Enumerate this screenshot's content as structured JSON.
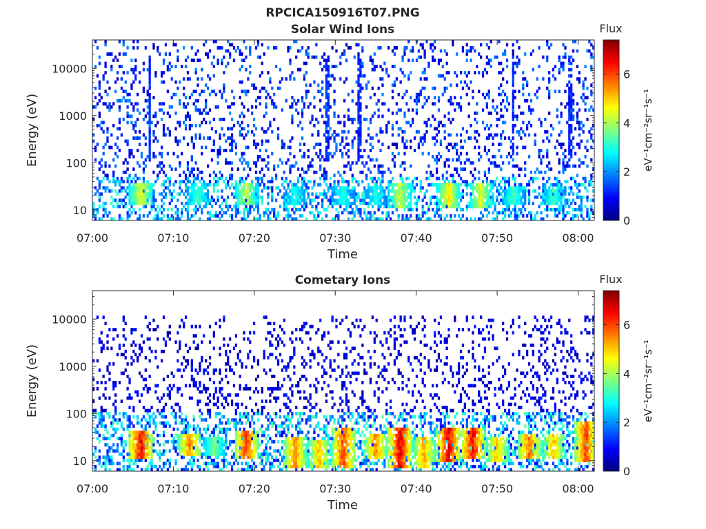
{
  "figure": {
    "title": "RPCICA150916T07.PNG"
  },
  "colorscale": {
    "name": "jet",
    "stops": [
      "#00007f",
      "#0000ff",
      "#007fff",
      "#00ffff",
      "#7fff7f",
      "#ffff00",
      "#ff7f00",
      "#ff0000",
      "#7f0000"
    ]
  },
  "chart_data": [
    {
      "type": "heatmap",
      "title": "Solar Wind Ions",
      "xlabel": "Time",
      "ylabel": "Energy (eV)",
      "x_range": [
        "07:00",
        "08:02"
      ],
      "x_ticks": [
        "07:00",
        "07:10",
        "07:20",
        "07:30",
        "07:40",
        "07:50",
        "08:00"
      ],
      "y_scale": "log",
      "y_range": [
        6,
        40000
      ],
      "y_ticks": [
        10,
        100,
        1000,
        10000
      ],
      "y_tick_labels": [
        "10",
        "100",
        "1000",
        "10000"
      ],
      "colorbar": {
        "label": "Flux",
        "unit": "eV⁻¹cm⁻²sr⁻¹s⁻¹",
        "range": [
          0,
          7.4
        ],
        "ticks": [
          0,
          2,
          4,
          6
        ],
        "tick_labels": [
          "0",
          "2",
          "4",
          "6"
        ]
      },
      "background_noise": {
        "energy_range": [
          60,
          40000
        ],
        "flux_range": [
          0.3,
          2.0
        ]
      },
      "low_energy_band": {
        "energy_range": [
          6,
          50
        ],
        "flux_range": [
          1,
          3.2
        ]
      },
      "features": [
        {
          "time": "07:06",
          "energy_range": [
            15,
            35
          ],
          "flux": 4.8
        },
        {
          "time": "07:13",
          "energy_range": [
            15,
            35
          ],
          "flux": 3.5
        },
        {
          "time": "07:19",
          "energy_range": [
            15,
            35
          ],
          "flux": 4.5
        },
        {
          "time": "07:25",
          "energy_range": [
            15,
            30
          ],
          "flux": 3.2
        },
        {
          "time": "07:31",
          "energy_range": [
            15,
            30
          ],
          "flux": 3.3
        },
        {
          "time": "07:35",
          "energy_range": [
            15,
            30
          ],
          "flux": 3.2
        },
        {
          "time": "07:38",
          "energy_range": [
            12,
            35
          ],
          "flux": 4.6
        },
        {
          "time": "07:44",
          "energy_range": [
            12,
            35
          ],
          "flux": 5.0
        },
        {
          "time": "07:48",
          "energy_range": [
            12,
            35
          ],
          "flux": 4.8
        },
        {
          "time": "07:52",
          "energy_range": [
            15,
            30
          ],
          "flux": 3.6
        },
        {
          "time": "07:57",
          "energy_range": [
            15,
            30
          ],
          "flux": 3.5
        }
      ],
      "vertical_streaks": [
        "07:07",
        "07:29",
        "07:33",
        "07:52",
        "07:59"
      ]
    },
    {
      "type": "heatmap",
      "title": "Cometary Ions",
      "xlabel": "Time",
      "ylabel": "Energy (eV)",
      "x_range": [
        "07:00",
        "08:02"
      ],
      "x_ticks": [
        "07:00",
        "07:10",
        "07:20",
        "07:30",
        "07:40",
        "07:50",
        "08:00"
      ],
      "y_scale": "log",
      "y_range": [
        6,
        40000
      ],
      "y_ticks": [
        10,
        100,
        1000,
        10000
      ],
      "y_tick_labels": [
        "10",
        "100",
        "1000",
        "10000"
      ],
      "colorbar": {
        "label": "Flux",
        "unit": "eV⁻¹cm⁻²sr⁻¹s⁻¹",
        "range": [
          0,
          7.4
        ],
        "ticks": [
          0,
          2,
          4,
          6
        ],
        "tick_labels": [
          "0",
          "2",
          "4",
          "6"
        ]
      },
      "background_noise": {
        "energy_range": [
          100,
          12000
        ],
        "flux_range": [
          0.2,
          1.2
        ]
      },
      "low_energy_band": {
        "energy_range": [
          6,
          100
        ],
        "flux_range": [
          0.8,
          3.5
        ]
      },
      "features": [
        {
          "time": "07:06",
          "energy_range": [
            12,
            40
          ],
          "flux": 7.0
        },
        {
          "time": "07:12",
          "energy_range": [
            15,
            35
          ],
          "flux": 6.0
        },
        {
          "time": "07:15",
          "energy_range": [
            15,
            30
          ],
          "flux": 4.0
        },
        {
          "time": "07:19",
          "energy_range": [
            12,
            40
          ],
          "flux": 6.5
        },
        {
          "time": "07:25",
          "energy_range": [
            8,
            30
          ],
          "flux": 6.0
        },
        {
          "time": "07:28",
          "energy_range": [
            8,
            25
          ],
          "flux": 5.5
        },
        {
          "time": "07:31",
          "energy_range": [
            8,
            45
          ],
          "flux": 6.5
        },
        {
          "time": "07:35",
          "energy_range": [
            12,
            35
          ],
          "flux": 6.0
        },
        {
          "time": "07:38",
          "energy_range": [
            8,
            45
          ],
          "flux": 7.2
        },
        {
          "time": "07:41",
          "energy_range": [
            8,
            30
          ],
          "flux": 5.8
        },
        {
          "time": "07:44",
          "energy_range": [
            10,
            45
          ],
          "flux": 7.2
        },
        {
          "time": "07:47",
          "energy_range": [
            12,
            45
          ],
          "flux": 7.0
        },
        {
          "time": "07:50",
          "energy_range": [
            10,
            30
          ],
          "flux": 5.5
        },
        {
          "time": "07:54",
          "energy_range": [
            12,
            35
          ],
          "flux": 6.2
        },
        {
          "time": "07:57",
          "energy_range": [
            12,
            35
          ],
          "flux": 5.5
        },
        {
          "time": "08:01",
          "energy_range": [
            10,
            60
          ],
          "flux": 6.5
        }
      ],
      "vertical_streaks": []
    }
  ]
}
